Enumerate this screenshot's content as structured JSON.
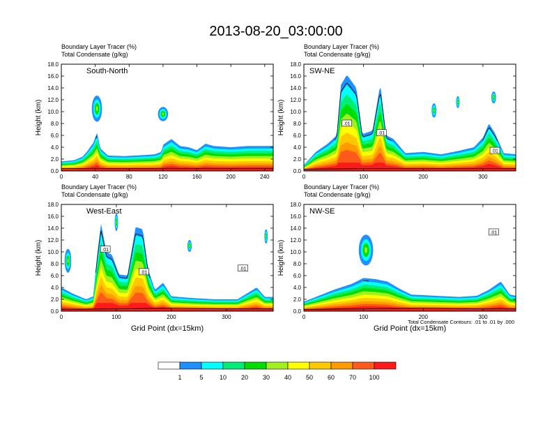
{
  "title": "2013-08-20_03:00:00",
  "colors": {
    "scale": [
      "#ffffff",
      "#1e90ff",
      "#00ffff",
      "#00ee76",
      "#00dd00",
      "#a0f020",
      "#ffff00",
      "#ffc800",
      "#ff9a00",
      "#ff5a1a",
      "#ff1a1a"
    ]
  },
  "colorbar": {
    "labels": [
      "1",
      "5",
      "10",
      "20",
      "30",
      "40",
      "50",
      "60",
      "70",
      "100"
    ]
  },
  "footnote": "Total Condensate Contours: .01 to .01 by .000",
  "chart_data": [
    {
      "type": "contour-section",
      "name": "South-North",
      "title_line1": "Boundary Layer Tracer    (%)",
      "title_line2": "Total Condensate    (g/kg)",
      "ylabel": "Height (km)",
      "xlabel": "",
      "xlim": [
        0,
        250
      ],
      "xticks": [
        "0",
        "40",
        "80",
        "120",
        "160",
        "200",
        "240"
      ],
      "ylim": [
        0,
        18
      ],
      "yticks": [
        "0.0",
        "2.0",
        "4.0",
        "6.0",
        "8.0",
        "10.0",
        "12.0",
        "14.0",
        "16.0",
        "18.0"
      ],
      "contour_labels": [],
      "tracer_top_km": [
        [
          0,
          1.6
        ],
        [
          15,
          1.8
        ],
        [
          25,
          2.4
        ],
        [
          30,
          3.2
        ],
        [
          38,
          4.8
        ],
        [
          42,
          6.5
        ],
        [
          46,
          3.8
        ],
        [
          55,
          2.6
        ],
        [
          75,
          2.5
        ],
        [
          100,
          2.7
        ],
        [
          110,
          2.8
        ],
        [
          118,
          3.2
        ],
        [
          120,
          4.4
        ],
        [
          130,
          5.4
        ],
        [
          140,
          4.2
        ],
        [
          150,
          4.0
        ],
        [
          160,
          3.5
        ],
        [
          170,
          4.6
        ],
        [
          180,
          4.2
        ],
        [
          200,
          4.0
        ],
        [
          220,
          4.2
        ],
        [
          240,
          4.2
        ],
        [
          250,
          4.2
        ]
      ],
      "detached_blobs": [
        [
          42,
          10.5,
          6,
          2.2
        ],
        [
          120,
          9.6,
          6,
          1.2
        ]
      ],
      "surface_km": [
        [
          0,
          0.4
        ],
        [
          50,
          0.4
        ],
        [
          100,
          0.4
        ],
        [
          150,
          0.4
        ],
        [
          200,
          0.4
        ],
        [
          250,
          0.4
        ]
      ]
    },
    {
      "type": "contour-section",
      "name": "SW-NE",
      "title_line1": "Boundary Layer Tracer    (%)",
      "title_line2": "Total Condensate    (g/kg)",
      "ylabel": "Height (km)",
      "xlabel": "",
      "xlim": [
        0,
        355
      ],
      "xticks": [
        "0",
        "100",
        "200",
        "300"
      ],
      "ylim": [
        0,
        18
      ],
      "yticks": [
        "0.0",
        "2.0",
        "4.0",
        "6.0",
        "8.0",
        "10.0",
        "12.0",
        "14.0",
        "16.0",
        "18.0"
      ],
      "contour_labels": [
        ".01",
        ".01",
        ".01"
      ],
      "contour_label_pos": [
        [
          72,
          8.0
        ],
        [
          130,
          6.4
        ],
        [
          320,
          3.4
        ]
      ],
      "tracer_top_km": [
        [
          0,
          1.0
        ],
        [
          20,
          3.2
        ],
        [
          40,
          4.6
        ],
        [
          55,
          6.0
        ],
        [
          62,
          14.5
        ],
        [
          72,
          16.2
        ],
        [
          88,
          14.0
        ],
        [
          98,
          6.2
        ],
        [
          115,
          6.8
        ],
        [
          128,
          14.6
        ],
        [
          138,
          6.0
        ],
        [
          150,
          5.4
        ],
        [
          170,
          3.0
        ],
        [
          200,
          3.2
        ],
        [
          230,
          2.8
        ],
        [
          260,
          3.4
        ],
        [
          285,
          4.0
        ],
        [
          300,
          5.6
        ],
        [
          310,
          8.0
        ],
        [
          320,
          6.4
        ],
        [
          335,
          3.0
        ],
        [
          355,
          2.8
        ]
      ],
      "detached_blobs": [
        [
          218,
          10.2,
          4,
          1.2
        ],
        [
          258,
          11.6,
          3,
          1.0
        ],
        [
          318,
          12.4,
          4,
          1.0
        ]
      ],
      "surface_km": [
        [
          0,
          0.3
        ],
        [
          100,
          0.4
        ],
        [
          200,
          0.4
        ],
        [
          300,
          0.4
        ],
        [
          355,
          0.4
        ]
      ]
    },
    {
      "type": "contour-section",
      "name": "West-East",
      "title_line1": "Boundary Layer Tracer    (%)",
      "title_line2": "Total Condensate    (g/kg)",
      "ylabel": "Height (km)",
      "xlabel": "Grid Point (dx=15km)",
      "xlim": [
        0,
        385
      ],
      "xticks": [
        "0",
        "100",
        "200",
        "300"
      ],
      "ylim": [
        0,
        18
      ],
      "yticks": [
        "0.0",
        "2.0",
        "4.0",
        "6.0",
        "8.0",
        "10.0",
        "12.0",
        "14.0",
        "16.0",
        "18.0"
      ],
      "contour_labels": [
        ".01",
        ".01",
        ".01"
      ],
      "contour_label_pos": [
        [
          80,
          10.4
        ],
        [
          150,
          6.6
        ],
        [
          330,
          7.2
        ]
      ],
      "tracer_top_km": [
        [
          0,
          4.0
        ],
        [
          20,
          3.0
        ],
        [
          45,
          2.0
        ],
        [
          58,
          2.5
        ],
        [
          64,
          8.5
        ],
        [
          72,
          14.8
        ],
        [
          82,
          10.0
        ],
        [
          92,
          9.5
        ],
        [
          105,
          6.2
        ],
        [
          120,
          6.0
        ],
        [
          135,
          14.2
        ],
        [
          148,
          13.8
        ],
        [
          158,
          7.0
        ],
        [
          170,
          3.6
        ],
        [
          185,
          4.8
        ],
        [
          200,
          2.5
        ],
        [
          240,
          2.2
        ],
        [
          280,
          2.0
        ],
        [
          320,
          2.0
        ],
        [
          355,
          4.0
        ],
        [
          370,
          2.4
        ],
        [
          385,
          2.4
        ]
      ],
      "detached_blobs": [
        [
          12,
          8.5,
          6,
          2.0
        ],
        [
          100,
          15.0,
          3,
          1.5
        ],
        [
          233,
          11.0,
          4,
          1.0
        ],
        [
          372,
          12.6,
          3,
          1.2
        ]
      ],
      "surface_km": [
        [
          0,
          0.3
        ],
        [
          100,
          0.4
        ],
        [
          200,
          0.5
        ],
        [
          300,
          0.4
        ],
        [
          385,
          0.4
        ]
      ]
    },
    {
      "type": "contour-section",
      "name": "NW-SE",
      "title_line1": "Boundary Layer Tracer    (%)",
      "title_line2": "Total Condensate    (g/kg)",
      "ylabel": "Height (km)",
      "xlabel": "Grid Point (dx=15km)",
      "xlim": [
        0,
        355
      ],
      "xticks": [
        "0",
        "100",
        "200",
        "300"
      ],
      "ylim": [
        0,
        18
      ],
      "yticks": [
        "0.0",
        "2.0",
        "4.0",
        "6.0",
        "8.0",
        "10.0",
        "12.0",
        "14.0",
        "16.0",
        "18.0"
      ],
      "contour_labels": [
        ".01"
      ],
      "contour_label_pos": [
        [
          318,
          13.3
        ]
      ],
      "tracer_top_km": [
        [
          0,
          1.6
        ],
        [
          20,
          2.4
        ],
        [
          50,
          3.6
        ],
        [
          80,
          4.6
        ],
        [
          100,
          5.6
        ],
        [
          120,
          5.4
        ],
        [
          140,
          5.0
        ],
        [
          160,
          3.8
        ],
        [
          180,
          2.8
        ],
        [
          220,
          2.6
        ],
        [
          260,
          2.4
        ],
        [
          290,
          2.6
        ],
        [
          310,
          3.6
        ],
        [
          330,
          5.0
        ],
        [
          345,
          2.8
        ],
        [
          355,
          2.6
        ]
      ],
      "detached_blobs": [
        [
          104,
          10.3,
          12,
          2.6
        ]
      ],
      "surface_km": [
        [
          0,
          0.3
        ],
        [
          100,
          0.4
        ],
        [
          200,
          0.5
        ],
        [
          300,
          0.4
        ],
        [
          355,
          0.4
        ]
      ]
    }
  ]
}
